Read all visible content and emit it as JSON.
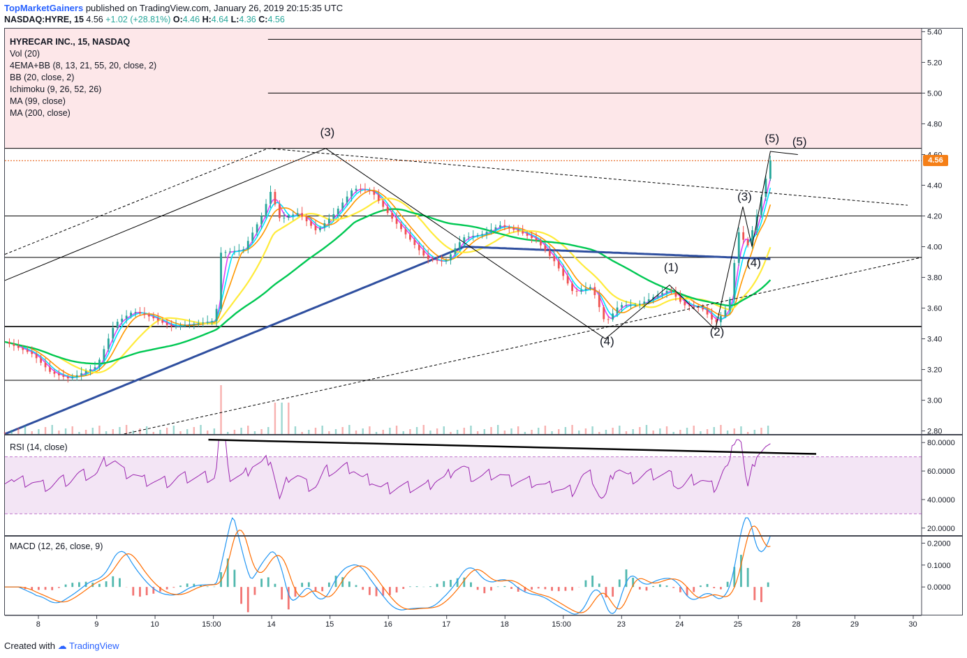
{
  "header": {
    "author": "TopMarketGainers",
    "published": "published on TradingView.com, January 26, 2019 20:15:35 UTC"
  },
  "symbol_bar": {
    "ticker": "NASDAQ:HYRE, 15",
    "last": "4.56",
    "change": "+1.02 (+28.81%)",
    "o_label": "O:",
    "o": "4.46",
    "h_label": "H:",
    "h": "4.64",
    "l_label": "L:",
    "l": "4.36",
    "c_label": "C:",
    "c": "4.56"
  },
  "legend": {
    "title": "HYRECAR INC., 15, NASDAQ",
    "items": [
      "Vol (20)",
      "4EMA+BB (8, 13, 21, 55, 20, close, 2)",
      "BB (20, close, 2)",
      "Ichimoku (9, 26, 52, 26)",
      "MA (99, close)",
      "MA (200, close)"
    ]
  },
  "rsi_label": "RSI (14, close)",
  "macd_label": "MACD (12, 26, close, 9)",
  "price_tag": "4.56",
  "footer": {
    "created": "Created with",
    "brand": "TradingView"
  },
  "colors": {
    "up": "#26a69a",
    "down": "#ef5350",
    "ema1": "#e040fb",
    "ema2": "#00e5ff",
    "ema3": "#ff9800",
    "ema4": "#ffeb3b",
    "ma99": "#00c853",
    "ma200": "#2f4f9f",
    "rsi": "#9c27b0",
    "macd": "#2196f3",
    "signal": "#ff6d00",
    "resistance_zone": "#fde7e9"
  },
  "chart_data": {
    "type": "candlestick",
    "price_axis": {
      "ticks": [
        "2.80",
        "3.00",
        "3.20",
        "3.40",
        "3.60",
        "3.80",
        "4.00",
        "4.20",
        "4.40",
        "4.60",
        "4.80",
        "5.00",
        "5.20",
        "5.40"
      ],
      "range": [
        2.78,
        5.42
      ]
    },
    "time_axis": {
      "labels": [
        "8",
        "9",
        "10",
        "15:00",
        "14",
        "15",
        "16",
        "17",
        "18",
        "15:00",
        "23",
        "24",
        "25",
        "28",
        "29",
        "30"
      ]
    },
    "horizontal_levels": [
      5.35,
      5.0,
      4.64,
      4.56,
      4.2,
      3.93,
      3.48,
      3.13
    ],
    "wave_labels": [
      {
        "text": "(3)",
        "t": 0.35,
        "price": 4.72
      },
      {
        "text": "(4)",
        "t": 0.655,
        "price": 3.36
      },
      {
        "text": "(1)",
        "t": 0.725,
        "price": 3.84
      },
      {
        "text": "(2)",
        "t": 0.775,
        "price": 3.42
      },
      {
        "text": "(3)",
        "t": 0.805,
        "price": 4.3
      },
      {
        "text": "(4)",
        "t": 0.815,
        "price": 3.87
      },
      {
        "text": "(5)",
        "t": 0.835,
        "price": 4.68
      },
      {
        "text": "(5)",
        "t": 0.865,
        "price": 4.66
      }
    ],
    "price_path": [
      {
        "t": 0.0,
        "p": 3.38
      },
      {
        "t": 0.03,
        "p": 3.3
      },
      {
        "t": 0.05,
        "p": 3.18
      },
      {
        "t": 0.07,
        "p": 3.14
      },
      {
        "t": 0.1,
        "p": 3.22
      },
      {
        "t": 0.12,
        "p": 3.5
      },
      {
        "t": 0.14,
        "p": 3.58
      },
      {
        "t": 0.16,
        "p": 3.54
      },
      {
        "t": 0.18,
        "p": 3.48
      },
      {
        "t": 0.21,
        "p": 3.5
      },
      {
        "t": 0.23,
        "p": 3.52
      },
      {
        "t": 0.235,
        "p": 3.96
      },
      {
        "t": 0.26,
        "p": 3.98
      },
      {
        "t": 0.28,
        "p": 4.2
      },
      {
        "t": 0.29,
        "p": 4.36
      },
      {
        "t": 0.3,
        "p": 4.18
      },
      {
        "t": 0.32,
        "p": 4.22
      },
      {
        "t": 0.34,
        "p": 4.1
      },
      {
        "t": 0.36,
        "p": 4.22
      },
      {
        "t": 0.38,
        "p": 4.38
      },
      {
        "t": 0.4,
        "p": 4.36
      },
      {
        "t": 0.42,
        "p": 4.2
      },
      {
        "t": 0.44,
        "p": 4.06
      },
      {
        "t": 0.46,
        "p": 3.92
      },
      {
        "t": 0.48,
        "p": 3.9
      },
      {
        "t": 0.5,
        "p": 4.06
      },
      {
        "t": 0.52,
        "p": 4.08
      },
      {
        "t": 0.54,
        "p": 4.14
      },
      {
        "t": 0.56,
        "p": 4.1
      },
      {
        "t": 0.58,
        "p": 4.04
      },
      {
        "t": 0.6,
        "p": 3.9
      },
      {
        "t": 0.62,
        "p": 3.7
      },
      {
        "t": 0.64,
        "p": 3.74
      },
      {
        "t": 0.655,
        "p": 3.5
      },
      {
        "t": 0.67,
        "p": 3.62
      },
      {
        "t": 0.69,
        "p": 3.62
      },
      {
        "t": 0.71,
        "p": 3.68
      },
      {
        "t": 0.725,
        "p": 3.72
      },
      {
        "t": 0.74,
        "p": 3.62
      },
      {
        "t": 0.76,
        "p": 3.6
      },
      {
        "t": 0.775,
        "p": 3.5
      },
      {
        "t": 0.79,
        "p": 3.62
      },
      {
        "t": 0.8,
        "p": 4.1
      },
      {
        "t": 0.81,
        "p": 4.0
      },
      {
        "t": 0.82,
        "p": 4.2
      },
      {
        "t": 0.835,
        "p": 4.56
      }
    ],
    "rsi": {
      "ticks": [
        "20.0000",
        "40.0000",
        "60.0000",
        "80.0000"
      ],
      "range": [
        15,
        85
      ],
      "bands": [
        30,
        70
      ]
    },
    "macd": {
      "ticks": [
        "0.0000",
        "0.1000",
        "0.2000"
      ],
      "range": [
        -0.13,
        0.23
      ]
    }
  }
}
